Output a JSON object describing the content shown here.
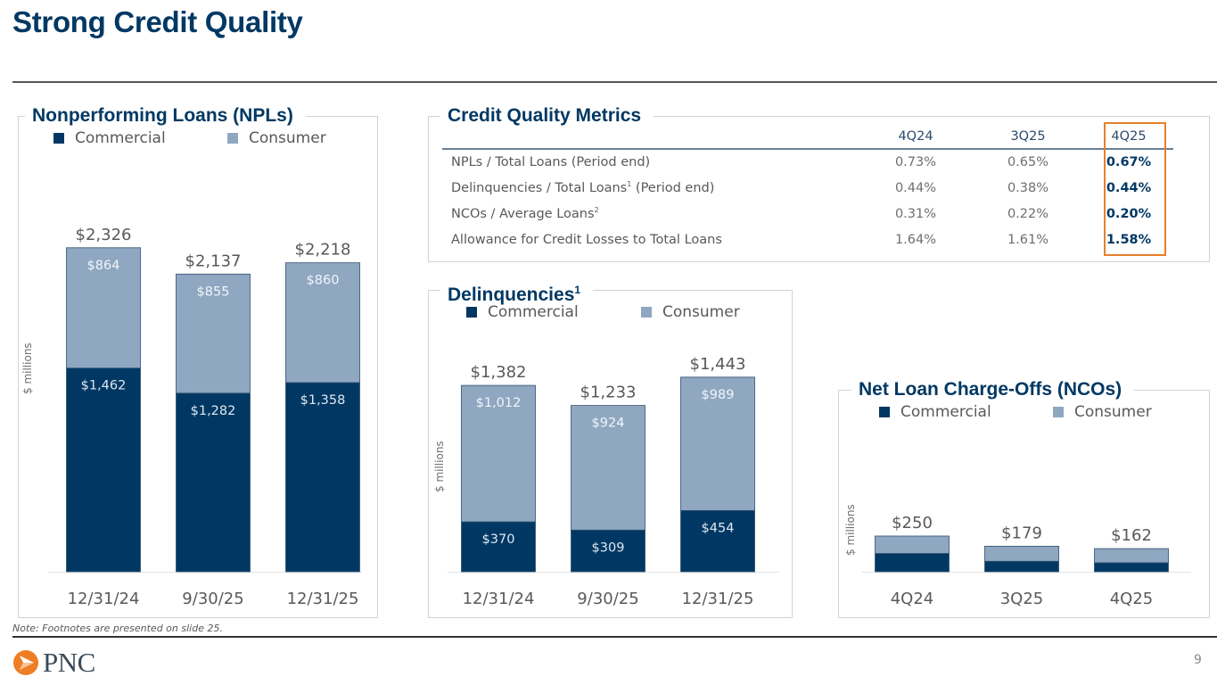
{
  "title": "Strong Credit Quality",
  "colors": {
    "commercial": "#003863",
    "consumer": "#8fa7c1",
    "title": "#003863",
    "highlight": "#e77f2a"
  },
  "legend": {
    "commercial": "Commercial",
    "consumer": "Consumer"
  },
  "y_unit_label": "$ millions",
  "chart_data": [
    {
      "type": "bar",
      "stacked": true,
      "title": "Nonperforming Loans (NPLs)",
      "categories": [
        "12/31/24",
        "9/30/25",
        "12/31/25"
      ],
      "series": [
        {
          "name": "Commercial",
          "values": [
            1462,
            1282,
            1358
          ],
          "labels": [
            "$1,462",
            "$1,282",
            "$1,358"
          ]
        },
        {
          "name": "Consumer",
          "values": [
            864,
            855,
            860
          ],
          "labels": [
            "$864",
            "$855",
            "$860"
          ]
        }
      ],
      "totals": [
        2326,
        2137,
        2218
      ],
      "total_labels": [
        "$2,326",
        "$2,137",
        "$2,218"
      ],
      "ylabel": "$ millions",
      "ylim": [
        0,
        2600
      ],
      "legend": "top"
    },
    {
      "type": "bar",
      "stacked": true,
      "title": "Delinquencies",
      "title_sup": "1",
      "categories": [
        "12/31/24",
        "9/30/25",
        "12/31/25"
      ],
      "series": [
        {
          "name": "Commercial",
          "values": [
            370,
            309,
            454
          ],
          "labels": [
            "$370",
            "$309",
            "$454"
          ]
        },
        {
          "name": "Consumer",
          "values": [
            1012,
            924,
            989
          ],
          "labels": [
            "$1,012",
            "$924",
            "$989"
          ]
        }
      ],
      "totals": [
        1382,
        1233,
        1443
      ],
      "total_labels": [
        "$1,382",
        "$1,233",
        "$1,443"
      ],
      "ylabel": "$ millions",
      "ylim": [
        0,
        1720
      ],
      "legend": "top"
    },
    {
      "type": "bar",
      "stacked": true,
      "title": "Net Loan Charge-Offs (NCOs)",
      "categories": [
        "4Q24",
        "3Q25",
        "4Q25"
      ],
      "series": [
        {
          "name": "Commercial",
          "values": [
            128,
            73,
            63
          ],
          "labels": [
            "",
            "",
            ""
          ]
        },
        {
          "name": "Consumer",
          "values": [
            122,
            106,
            99
          ],
          "labels": [
            "",
            "",
            ""
          ]
        }
      ],
      "totals": [
        250,
        179,
        162
      ],
      "total_labels": [
        "$250",
        "$179",
        "$162"
      ],
      "ylabel": "$ millions",
      "ylim": [
        0,
        1000
      ],
      "legend": "top"
    }
  ],
  "metrics": {
    "title": "Credit Quality Metrics",
    "columns": [
      "4Q24",
      "3Q25",
      "4Q25"
    ],
    "highlight_column": "4Q25",
    "rows": [
      {
        "label": "NPLs / Total Loans (Period end)",
        "sup": "",
        "suffix": "",
        "values": [
          "0.73%",
          "0.65%",
          "0.67%"
        ]
      },
      {
        "label": "Delinquencies / Total Loans",
        "sup": "1",
        "suffix": " (Period end)",
        "values": [
          "0.44%",
          "0.38%",
          "0.44%"
        ]
      },
      {
        "label": "NCOs / Average Loans",
        "sup": "2",
        "suffix": "",
        "values": [
          "0.31%",
          "0.22%",
          "0.20%"
        ]
      },
      {
        "label": "Allowance for Credit Losses to Total Loans",
        "sup": "",
        "suffix": "",
        "values": [
          "1.64%",
          "1.61%",
          "1.58%"
        ]
      }
    ]
  },
  "note": "Note: Footnotes are presented on slide 25.",
  "logo_text": "PNC",
  "page_number": "9"
}
